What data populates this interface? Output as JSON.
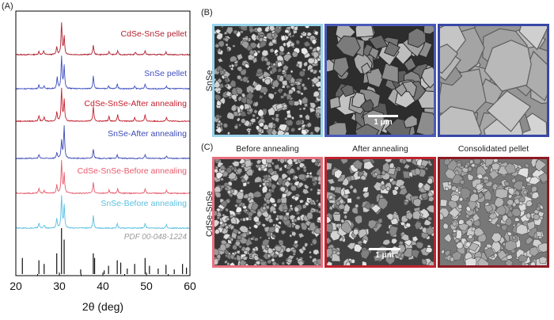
{
  "panel_a": {
    "label": "(A)",
    "xlabel": "2θ (deg)",
    "x_ticks": [
      "20",
      "30",
      "40",
      "50",
      "60"
    ],
    "reference_label": "PDF 00-048-1224",
    "reference_color": "#9a9a9a"
  },
  "panel_b": {
    "label": "(B)",
    "row_label": "SnSe",
    "scale_bar": "1 μm",
    "frame_colors": [
      "#9ad4ec",
      "#4a5ab8",
      "#3848a6"
    ]
  },
  "panel_c": {
    "label": "(C)",
    "row_label": "CdSe-SnSe",
    "columns": [
      "Before annealing",
      "After annealing",
      "Consolidated pellet"
    ],
    "scale_bar": "1 μm",
    "frame_colors": [
      "#e8707e",
      "#c0222e",
      "#8c1a22"
    ]
  },
  "chart_data": {
    "type": "line",
    "xlabel": "2θ (deg)",
    "xlim": [
      20,
      60
    ],
    "x_ticks": [
      20,
      30,
      40,
      50,
      60
    ],
    "ylabel": "",
    "series": [
      {
        "name": "CdSe-SnSe pellet",
        "color": "#b01f2e",
        "peaks": [
          [
            25.3,
            0.1
          ],
          [
            26.4,
            0.12
          ],
          [
            29.4,
            0.25
          ],
          [
            30.5,
            1.0
          ],
          [
            31.1,
            0.55
          ],
          [
            37.8,
            0.3
          ],
          [
            41.4,
            0.1
          ],
          [
            43.4,
            0.12
          ],
          [
            47.5,
            0.08
          ],
          [
            49.7,
            0.12
          ],
          [
            54.5,
            0.08
          ]
        ]
      },
      {
        "name": "SnSe pellet",
        "color": "#3f4ec0",
        "peaks": [
          [
            25.3,
            0.12
          ],
          [
            26.5,
            0.1
          ],
          [
            29.5,
            0.35
          ],
          [
            30.5,
            1.0
          ],
          [
            31.1,
            0.7
          ],
          [
            37.8,
            0.4
          ],
          [
            41.3,
            0.1
          ],
          [
            43.3,
            0.15
          ],
          [
            47.3,
            0.08
          ],
          [
            49.7,
            0.15
          ],
          [
            54.6,
            0.08
          ]
        ]
      },
      {
        "name": "CdSe-SnSe-After annealing",
        "color": "#c3202e",
        "peaks": [
          [
            25.3,
            0.18
          ],
          [
            26.5,
            0.12
          ],
          [
            29.4,
            0.3
          ],
          [
            30.5,
            1.0
          ],
          [
            31.1,
            0.65
          ],
          [
            37.8,
            0.45
          ],
          [
            41.4,
            0.15
          ],
          [
            43.4,
            0.2
          ],
          [
            47.3,
            0.12
          ],
          [
            49.7,
            0.2
          ],
          [
            54.6,
            0.12
          ]
        ]
      },
      {
        "name": "SnSe-After annealing",
        "color": "#3c4ab6",
        "peaks": [
          [
            25.3,
            0.12
          ],
          [
            29.4,
            0.18
          ],
          [
            30.5,
            0.55
          ],
          [
            31.1,
            1.0
          ],
          [
            37.8,
            0.3
          ],
          [
            43.3,
            0.12
          ],
          [
            49.7,
            0.12
          ],
          [
            54.6,
            0.08
          ]
        ]
      },
      {
        "name": "CdSe-SnSe-Before annealing",
        "color": "#e85a6c",
        "peaks": [
          [
            25.3,
            0.15
          ],
          [
            26.5,
            0.1
          ],
          [
            29.4,
            0.25
          ],
          [
            30.5,
            1.0
          ],
          [
            31.1,
            0.6
          ],
          [
            37.8,
            0.35
          ],
          [
            41.4,
            0.1
          ],
          [
            43.4,
            0.15
          ],
          [
            49.7,
            0.15
          ],
          [
            54.6,
            0.1
          ]
        ]
      },
      {
        "name": "SnSe-Before annealing",
        "color": "#5bbfe0",
        "peaks": [
          [
            25.3,
            0.15
          ],
          [
            26.5,
            0.1
          ],
          [
            29.4,
            0.3
          ],
          [
            30.5,
            1.0
          ],
          [
            31.1,
            0.7
          ],
          [
            37.8,
            0.4
          ],
          [
            43.3,
            0.15
          ],
          [
            49.7,
            0.15
          ],
          [
            54.6,
            0.1
          ]
        ]
      },
      {
        "name": "PDF 00-048-1224",
        "color": "#111111",
        "type": "sticks",
        "sticks": [
          [
            21.5,
            0.35
          ],
          [
            25.3,
            0.3
          ],
          [
            26.5,
            0.22
          ],
          [
            29.4,
            0.45
          ],
          [
            30.5,
            1.0
          ],
          [
            31.1,
            0.75
          ],
          [
            34.9,
            0.1
          ],
          [
            37.8,
            0.45
          ],
          [
            38.1,
            0.35
          ],
          [
            40.3,
            0.08
          ],
          [
            41.3,
            0.18
          ],
          [
            43.3,
            0.3
          ],
          [
            44.1,
            0.25
          ],
          [
            45.6,
            0.12
          ],
          [
            47.3,
            0.22
          ],
          [
            49.7,
            0.35
          ],
          [
            50.7,
            0.18
          ],
          [
            52.7,
            0.12
          ],
          [
            54.5,
            0.2
          ],
          [
            56.4,
            0.1
          ],
          [
            58.3,
            0.22
          ],
          [
            59.2,
            0.14
          ]
        ]
      }
    ]
  }
}
